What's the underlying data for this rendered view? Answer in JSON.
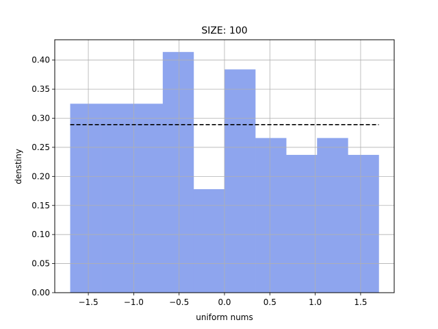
{
  "chart_data": {
    "type": "bar",
    "title": "SIZE: 100",
    "xlabel": "uniform nums",
    "ylabel": "denstiny",
    "xlim": [
      -1.87,
      1.87
    ],
    "ylim": [
      0,
      0.435
    ],
    "grid": true,
    "x_ticks": [
      -1.5,
      -1.0,
      -0.5,
      0.0,
      0.5,
      1.0,
      1.5
    ],
    "x_tick_labels": [
      "−1.5",
      "−1.0",
      "−0.5",
      "0.0",
      "0.5",
      "1.0",
      "1.5"
    ],
    "y_ticks": [
      0.0,
      0.05,
      0.1,
      0.15,
      0.2,
      0.25,
      0.3,
      0.35,
      0.4
    ],
    "y_tick_labels": [
      "0.00",
      "0.05",
      "0.10",
      "0.15",
      "0.20",
      "0.25",
      "0.30",
      "0.35",
      "0.40"
    ],
    "bar_color": "#8ea5ee",
    "bins": [
      {
        "x0": -1.7,
        "x1": -1.36,
        "value": 0.325
      },
      {
        "x0": -1.36,
        "x1": -1.02,
        "value": 0.325
      },
      {
        "x0": -1.02,
        "x1": -0.68,
        "value": 0.325
      },
      {
        "x0": -0.68,
        "x1": -0.34,
        "value": 0.414
      },
      {
        "x0": -0.34,
        "x1": 0.0,
        "value": 0.178
      },
      {
        "x0": 0.0,
        "x1": 0.34,
        "value": 0.384
      },
      {
        "x0": 0.34,
        "x1": 0.68,
        "value": 0.266
      },
      {
        "x0": 0.68,
        "x1": 1.02,
        "value": 0.237
      },
      {
        "x0": 1.02,
        "x1": 1.36,
        "value": 0.266
      },
      {
        "x0": 1.36,
        "x1": 1.7,
        "value": 0.237
      }
    ],
    "reference_line": {
      "x0": -1.7,
      "x1": 1.7,
      "y": 0.289,
      "style": "dashed",
      "color": "#000000"
    }
  }
}
